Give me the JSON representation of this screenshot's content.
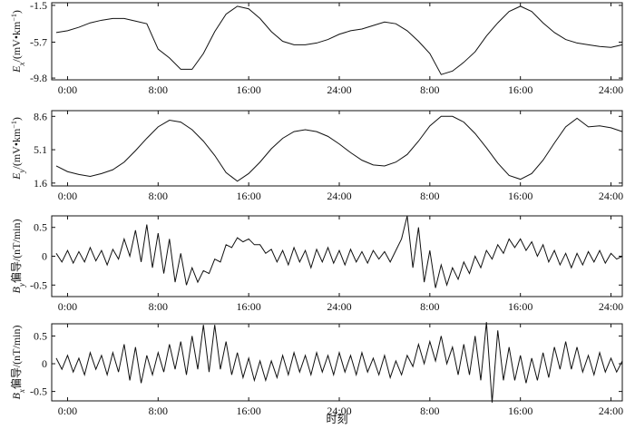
{
  "chart_data": [
    {
      "type": "line",
      "color": "#111111",
      "ylabel": {
        "symbol": "E",
        "subscript": "x",
        "unit": "/(mV•km",
        "superscript": "−1",
        "close": ")"
      },
      "x": [
        -1,
        0,
        1,
        2,
        3,
        4,
        5,
        6,
        7,
        8,
        9,
        10,
        11,
        12,
        13,
        14,
        15,
        16,
        17,
        18,
        19,
        20,
        21,
        22,
        23,
        24,
        25,
        26,
        27,
        28,
        29,
        30,
        31,
        32,
        33,
        34,
        35,
        36,
        37,
        38,
        39,
        40,
        41,
        42,
        43,
        44,
        45,
        46,
        47,
        48,
        49
      ],
      "values": [
        -4.6,
        -4.4,
        -4,
        -3.5,
        -3.2,
        -3,
        -3,
        -3.3,
        -3.6,
        -6.5,
        -7.5,
        -8.8,
        -8.8,
        -7,
        -4.5,
        -2.5,
        -1.6,
        -1.9,
        -3,
        -4.5,
        -5.6,
        -6,
        -6,
        -5.8,
        -5.4,
        -4.8,
        -4.4,
        -4.2,
        -3.8,
        -3.4,
        -3.6,
        -4.4,
        -5.6,
        -7,
        -9.4,
        -9,
        -8,
        -6.8,
        -5,
        -3.5,
        -2.2,
        -1.6,
        -2.2,
        -3.5,
        -4.6,
        -5.4,
        -5.8,
        -6,
        -6.2,
        -6.3,
        -6
      ],
      "xlim": [
        -1.4,
        49
      ],
      "ylim": [
        -10,
        -1.2
      ],
      "xticks": [
        {
          "value": 0,
          "label": "0:00"
        },
        {
          "value": 8,
          "label": "8:00"
        },
        {
          "value": 16,
          "label": "16:00"
        },
        {
          "value": 24,
          "label": "24:00"
        },
        {
          "value": 32,
          "label": "8:00"
        },
        {
          "value": 40,
          "label": "16:00"
        },
        {
          "value": 48,
          "label": "24:00"
        }
      ],
      "yticks": [
        -1.5,
        -5.7,
        -9.8
      ],
      "grid": false
    },
    {
      "type": "line",
      "color": "#111111",
      "ylabel": {
        "symbol": "E",
        "subscript": "y",
        "unit": "/(mV•km",
        "superscript": "−1",
        "close": ")"
      },
      "x": [
        -1,
        0,
        1,
        2,
        3,
        4,
        5,
        6,
        7,
        8,
        9,
        10,
        11,
        12,
        13,
        14,
        15,
        16,
        17,
        18,
        19,
        20,
        21,
        22,
        23,
        24,
        25,
        26,
        27,
        28,
        29,
        30,
        31,
        32,
        33,
        34,
        35,
        36,
        37,
        38,
        39,
        40,
        41,
        42,
        43,
        44,
        45,
        46,
        47,
        48,
        49
      ],
      "values": [
        3.4,
        2.8,
        2.5,
        2.3,
        2.6,
        3,
        3.8,
        5,
        6.3,
        7.5,
        8.2,
        8,
        7.2,
        6,
        4.5,
        2.7,
        1.8,
        2.6,
        3.8,
        5.2,
        6.3,
        7,
        7.2,
        7,
        6.5,
        5.7,
        4.8,
        4,
        3.5,
        3.4,
        3.8,
        4.6,
        6,
        7.6,
        8.6,
        8.6,
        8,
        6.8,
        5.3,
        3.7,
        2.4,
        2,
        2.6,
        4,
        5.8,
        7.5,
        8.4,
        7.5,
        7.6,
        7.4,
        7
      ],
      "xlim": [
        -1.4,
        49
      ],
      "ylim": [
        1.3,
        9.2
      ],
      "xticks": [
        {
          "value": 0,
          "label": "0:00"
        },
        {
          "value": 8,
          "label": "8:00"
        },
        {
          "value": 16,
          "label": "16:00"
        },
        {
          "value": 24,
          "label": "24:00"
        },
        {
          "value": 32,
          "label": "8:00"
        },
        {
          "value": 40,
          "label": "16:00"
        },
        {
          "value": 48,
          "label": "24:00"
        }
      ],
      "yticks": [
        1.6,
        5.1,
        8.6
      ],
      "grid": false
    },
    {
      "type": "line",
      "color": "#111111",
      "ylabel": {
        "symbol": "B",
        "subscript": "y",
        "unit": "偏导/(nT/min)"
      },
      "x": [
        -1,
        -0.5,
        0,
        0.5,
        1,
        1.5,
        2,
        2.5,
        3,
        3.5,
        4,
        4.5,
        5,
        5.5,
        6,
        6.5,
        7,
        7.5,
        8,
        8.5,
        9,
        9.5,
        10,
        10.5,
        11,
        11.5,
        12,
        12.5,
        13,
        13.5,
        14,
        14.5,
        15,
        15.5,
        16,
        16.5,
        17,
        17.5,
        18,
        18.5,
        19,
        19.5,
        20,
        20.5,
        21,
        21.5,
        22,
        22.5,
        23,
        23.5,
        24,
        24.5,
        25,
        25.5,
        26,
        26.5,
        27,
        27.5,
        28,
        28.5,
        29,
        29.5,
        30,
        30.5,
        31,
        31.5,
        32,
        32.5,
        33,
        33.5,
        34,
        34.5,
        35,
        35.5,
        36,
        36.5,
        37,
        37.5,
        38,
        38.5,
        39,
        39.5,
        40,
        40.5,
        41,
        41.5,
        42,
        42.5,
        43,
        43.5,
        44,
        44.5,
        45,
        45.5,
        46,
        46.5,
        47,
        47.5,
        48,
        48.5,
        49
      ],
      "values": [
        0.05,
        -0.1,
        0.1,
        -0.12,
        0.08,
        -0.1,
        0.15,
        -0.08,
        0.1,
        -0.15,
        0.12,
        -0.05,
        0.3,
        0,
        0.45,
        -0.1,
        0.55,
        -0.2,
        0.4,
        -0.3,
        0.3,
        -0.45,
        0.05,
        -0.5,
        -0.2,
        -0.45,
        -0.25,
        -0.3,
        -0.05,
        -0.1,
        0.2,
        0.15,
        0.32,
        0.25,
        0.3,
        0.2,
        0.2,
        0.05,
        0.12,
        -0.1,
        0.1,
        -0.15,
        0.15,
        -0.1,
        0.1,
        -0.2,
        0.12,
        -0.1,
        0.15,
        -0.12,
        0.1,
        -0.15,
        0.12,
        -0.1,
        0.08,
        -0.12,
        0.1,
        -0.05,
        0.08,
        -0.1,
        0.1,
        0.3,
        0.7,
        -0.2,
        0.5,
        -0.45,
        0.1,
        -0.55,
        -0.15,
        -0.5,
        -0.2,
        -0.4,
        -0.1,
        -0.3,
        0,
        -0.2,
        0.1,
        -0.05,
        0.2,
        0.05,
        0.3,
        0.15,
        0.3,
        0.1,
        0.25,
        0,
        0.2,
        -0.1,
        0.1,
        -0.15,
        0.05,
        -0.2,
        0.05,
        -0.15,
        0.08,
        -0.1,
        0.1,
        -0.12,
        0.05,
        -0.05,
        0
      ],
      "xlim": [
        -1.4,
        49
      ],
      "ylim": [
        -0.7,
        0.7
      ],
      "xticks": [
        {
          "value": 0,
          "label": "0:00"
        },
        {
          "value": 8,
          "label": "8:00"
        },
        {
          "value": 16,
          "label": "16:00"
        },
        {
          "value": 24,
          "label": "24:00"
        },
        {
          "value": 32,
          "label": "8:00"
        },
        {
          "value": 40,
          "label": "16:00"
        },
        {
          "value": 48,
          "label": "24:00"
        }
      ],
      "yticks": [
        0.5,
        0,
        -0.5
      ],
      "grid": false
    },
    {
      "type": "line",
      "color": "#111111",
      "ylabel": {
        "symbol": "B",
        "subscript": "x",
        "unit": "偏导/(nT/min)"
      },
      "xlabel": "时刻",
      "x": [
        -1,
        -0.5,
        0,
        0.5,
        1,
        1.5,
        2,
        2.5,
        3,
        3.5,
        4,
        4.5,
        5,
        5.5,
        6,
        6.5,
        7,
        7.5,
        8,
        8.5,
        9,
        9.5,
        10,
        10.5,
        11,
        11.5,
        12,
        12.5,
        13,
        13.5,
        14,
        14.5,
        15,
        15.5,
        16,
        16.5,
        17,
        17.5,
        18,
        18.5,
        19,
        19.5,
        20,
        20.5,
        21,
        21.5,
        22,
        22.5,
        23,
        23.5,
        24,
        24.5,
        25,
        25.5,
        26,
        26.5,
        27,
        27.5,
        28,
        28.5,
        29,
        29.5,
        30,
        30.5,
        31,
        31.5,
        32,
        32.5,
        33,
        33.5,
        34,
        34.5,
        35,
        35.5,
        36,
        36.5,
        37,
        37.5,
        38,
        38.5,
        39,
        39.5,
        40,
        40.5,
        41,
        41.5,
        42,
        42.5,
        43,
        43.5,
        44,
        44.5,
        45,
        45.5,
        46,
        46.5,
        47,
        47.5,
        48,
        48.5,
        49
      ],
      "values": [
        0.1,
        -0.1,
        0.15,
        -0.15,
        0.1,
        -0.2,
        0.2,
        -0.1,
        0.15,
        -0.2,
        0.2,
        -0.15,
        0.35,
        -0.3,
        0.3,
        -0.35,
        0.15,
        -0.2,
        0.2,
        -0.15,
        0.35,
        -0.1,
        0.4,
        -0.2,
        0.5,
        -0.1,
        0.7,
        -0.15,
        0.7,
        -0.1,
        0.4,
        -0.2,
        0.2,
        -0.25,
        0.1,
        -0.3,
        0.05,
        -0.3,
        0.05,
        -0.25,
        0.15,
        -0.2,
        0.2,
        -0.15,
        0.15,
        -0.2,
        0.2,
        -0.15,
        0.15,
        -0.2,
        0.2,
        -0.15,
        0.15,
        -0.2,
        0.2,
        -0.15,
        0.1,
        -0.2,
        0.15,
        -0.25,
        0.05,
        -0.2,
        0.15,
        -0.05,
        0.35,
        0,
        0.4,
        0.05,
        0.5,
        0,
        0.3,
        -0.2,
        0.35,
        -0.2,
        0.5,
        -0.3,
        0.75,
        -0.7,
        0.6,
        -0.3,
        0.3,
        -0.3,
        0.15,
        -0.35,
        0.1,
        -0.3,
        0.2,
        -0.25,
        0.3,
        -0.1,
        0.4,
        -0.1,
        0.3,
        -0.15,
        0.15,
        -0.2,
        0.2,
        -0.15,
        0.1,
        -0.15,
        0.05
      ],
      "xlim": [
        -1.4,
        49
      ],
      "ylim": [
        -0.67,
        0.72
      ],
      "xticks": [
        {
          "value": 0,
          "label": "0:00"
        },
        {
          "value": 8,
          "label": "8:00"
        },
        {
          "value": 16,
          "label": "16:00"
        },
        {
          "value": 24,
          "label": "24:00"
        },
        {
          "value": 32,
          "label": "8:00"
        },
        {
          "value": 40,
          "label": "16:00"
        },
        {
          "value": 48,
          "label": "24:00"
        }
      ],
      "yticks": [
        0.5,
        0,
        -0.5
      ],
      "grid": false
    }
  ]
}
